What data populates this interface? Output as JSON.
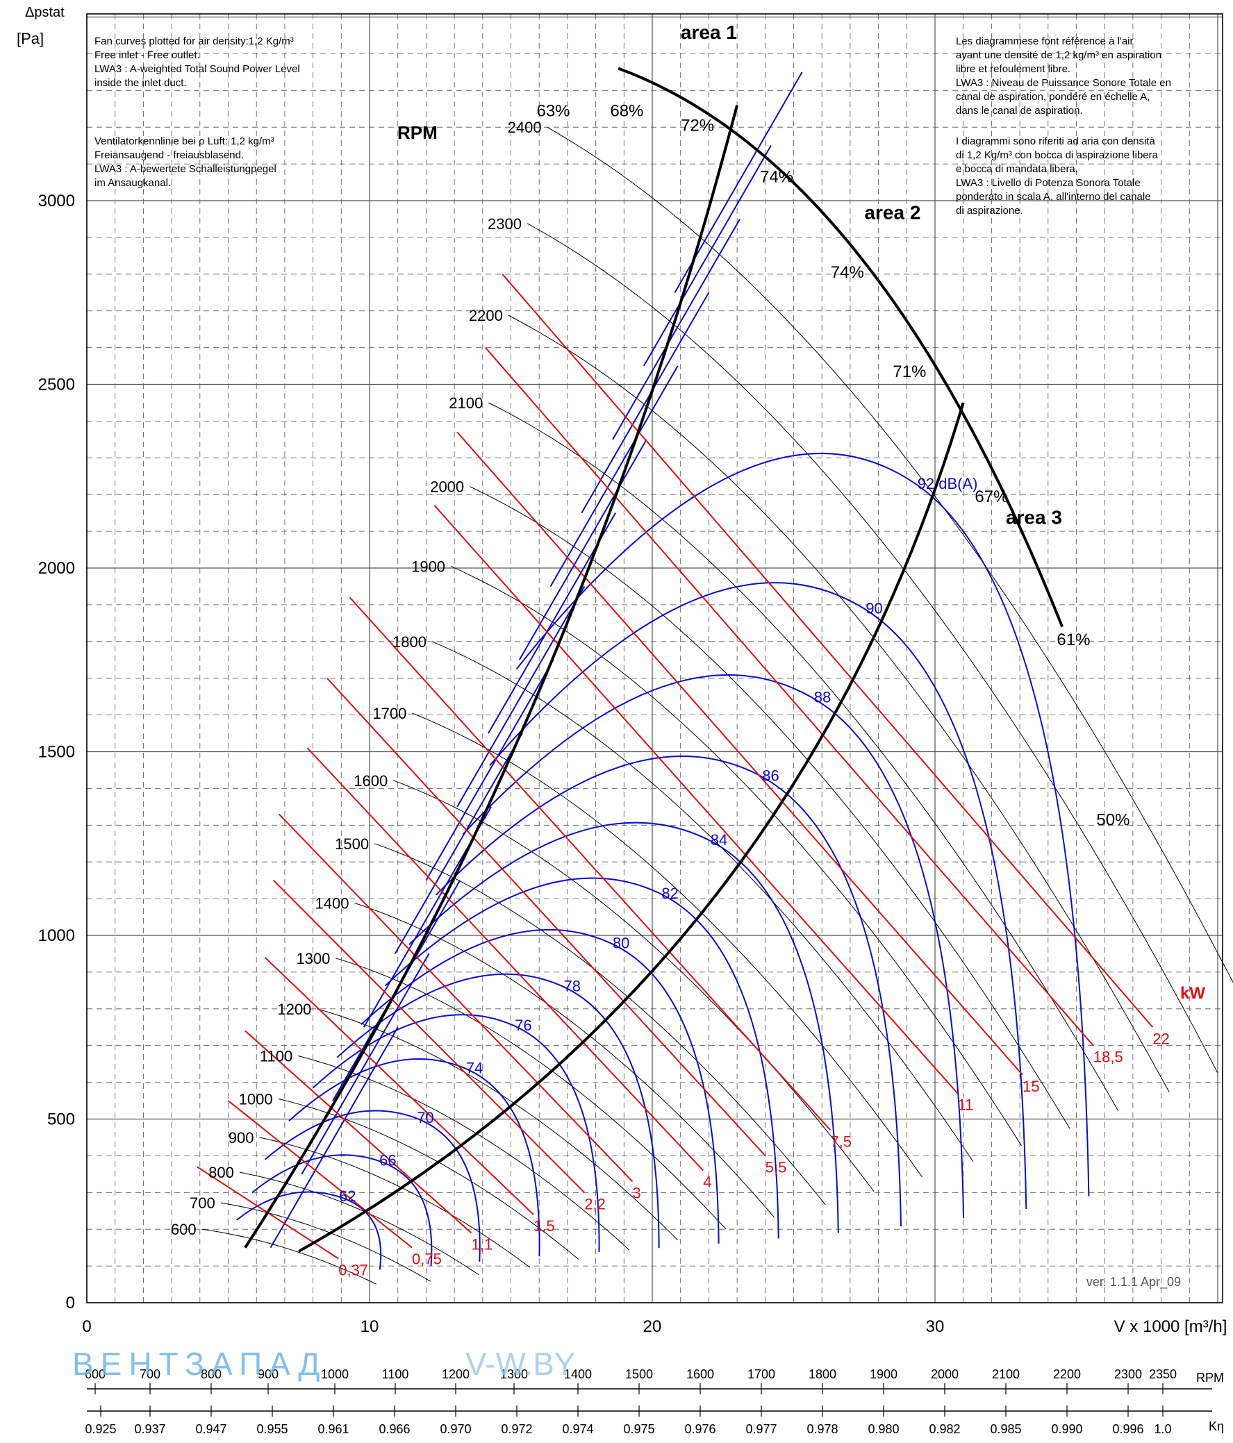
{
  "chart_data": {
    "type": "line",
    "y_axis": {
      "label_top": "Δpstat",
      "label_unit": "[Pa]",
      "range": [
        0,
        3500
      ],
      "ticks": [
        0,
        500,
        1000,
        1500,
        2000,
        2500,
        3000
      ]
    },
    "x_axis": {
      "label": "V x 1000 [m³/h]",
      "range": [
        0,
        40
      ],
      "ticks": [
        0,
        10,
        20,
        30
      ]
    },
    "grid": "dashed minor, solid major",
    "rpm_curves": [
      {
        "rpm": "600",
        "dp0": 200,
        "vmax": 11.0
      },
      {
        "rpm": "700",
        "dp0": 272,
        "vmax": 12.8
      },
      {
        "rpm": "800",
        "dp0": 355,
        "vmax": 14.6
      },
      {
        "rpm": "900",
        "dp0": 450,
        "vmax": 16.5
      },
      {
        "rpm": "1000",
        "dp0": 555,
        "vmax": 18.3
      },
      {
        "rpm": "1100",
        "dp0": 672,
        "vmax": 20.2
      },
      {
        "rpm": "1200",
        "dp0": 800,
        "vmax": 22.0
      },
      {
        "rpm": "1300",
        "dp0": 938,
        "vmax": 23.8
      },
      {
        "rpm": "1400",
        "dp0": 1088,
        "vmax": 25.6
      },
      {
        "rpm": "1500",
        "dp0": 1250,
        "vmax": 27.5
      },
      {
        "rpm": "1600",
        "dp0": 1422,
        "vmax": 29.3
      },
      {
        "rpm": "1700",
        "dp0": 1605,
        "vmax": 31.1
      },
      {
        "rpm": "1800",
        "dp0": 1800,
        "vmax": 33.0
      },
      {
        "rpm": "1900",
        "dp0": 2005,
        "vmax": 34.8
      },
      {
        "rpm": "2000",
        "dp0": 2222,
        "vmax": 36.6
      },
      {
        "rpm": "2100",
        "dp0": 2450,
        "vmax": 38.4
      },
      {
        "rpm": "2200",
        "dp0": 2688,
        "vmax": 40.3
      },
      {
        "rpm": "2300",
        "dp0": 2938,
        "vmax": 42.1
      },
      {
        "rpm": "2400",
        "dp0": 3200,
        "vmax": 44.0
      }
    ],
    "rpm_title": "RPM",
    "sound_labels": [
      "62",
      "66",
      "70",
      "74",
      "76",
      "78",
      "80",
      "82",
      "84",
      "86",
      "88",
      "90",
      "92 dB(A)"
    ],
    "power_labels": [
      "0,37",
      "0,75",
      "1,1",
      "1,5",
      "2,2",
      "3",
      "4",
      "5,5",
      "7,5",
      "11",
      "15",
      "18,5",
      "22"
    ],
    "power_unit": "kW",
    "efficiency_labels": [
      "63%",
      "68%",
      "72%",
      "74%",
      "74%",
      "71%",
      "67%",
      "61%",
      "50%"
    ],
    "area_labels": [
      "area 1",
      "area 2",
      "area 3"
    ],
    "version": "ver. 1.1.1 Apr_09"
  },
  "notes": {
    "en": [
      "Fan curves plotted for air density:1,2 Kg/m³",
      "Free inlet - Free outlet.",
      "LWA3 : A-weighted Total Sound Power Level",
      "inside the inlet duct."
    ],
    "de": [
      "Ventilatorkennlinie bei ρ Luft: 1,2 kg/m³",
      "Freiansaugend - freiausblasend.",
      "LWA3 : A-bewertete Schalleistungpegel",
      "im Ansaugkanal."
    ],
    "fr": [
      "Les diagrammese font référence à l'air",
      "ayant une densité de 1,2 kg/m³ en aspiration",
      "libre et refoulement libre.",
      "LWA3 : Niveau de Puissance Sonore Totale en",
      "canal de aspiration, pondéré en échelle A,",
      "dans le canal de aspiration."
    ],
    "it": [
      "I diagrammi sono riferiti ad aria con densità",
      "di 1,2 Kg/m³ con bocca di aspirazione libera",
      "e bocca di mandata libera.",
      "LWA3 : Livello di Potenza Sonora Totale",
      "ponderato in scala A, all'interno del canale",
      "di aspirazione."
    ]
  },
  "bottom_scale": {
    "rpm_label": "RPM",
    "rpm_values": [
      "600",
      "700",
      "800",
      "900",
      "1000",
      "1100",
      "1200",
      "1300",
      "1400",
      "1500",
      "1600",
      "1700",
      "1800",
      "1900",
      "2000",
      "2100",
      "2200",
      "2300",
      "2350"
    ],
    "k_label": "Kη",
    "k_values": [
      "0.925",
      "0.937",
      "0.947",
      "0.955",
      "0.961",
      "0.966",
      "0.970",
      "0.972",
      "0.974",
      "0.975",
      "0.976",
      "0.977",
      "0.978",
      "0.980",
      "0.982",
      "0.985",
      "0.990",
      "0.996",
      "1.0"
    ]
  },
  "watermark": {
    "text1": "ВЕНТЗАПАД",
    "text2": "V-W.BY"
  },
  "colors": {
    "rpm": "#000000",
    "sound": "#0b0bd0",
    "power": "#e01010",
    "grid": "#444444"
  }
}
